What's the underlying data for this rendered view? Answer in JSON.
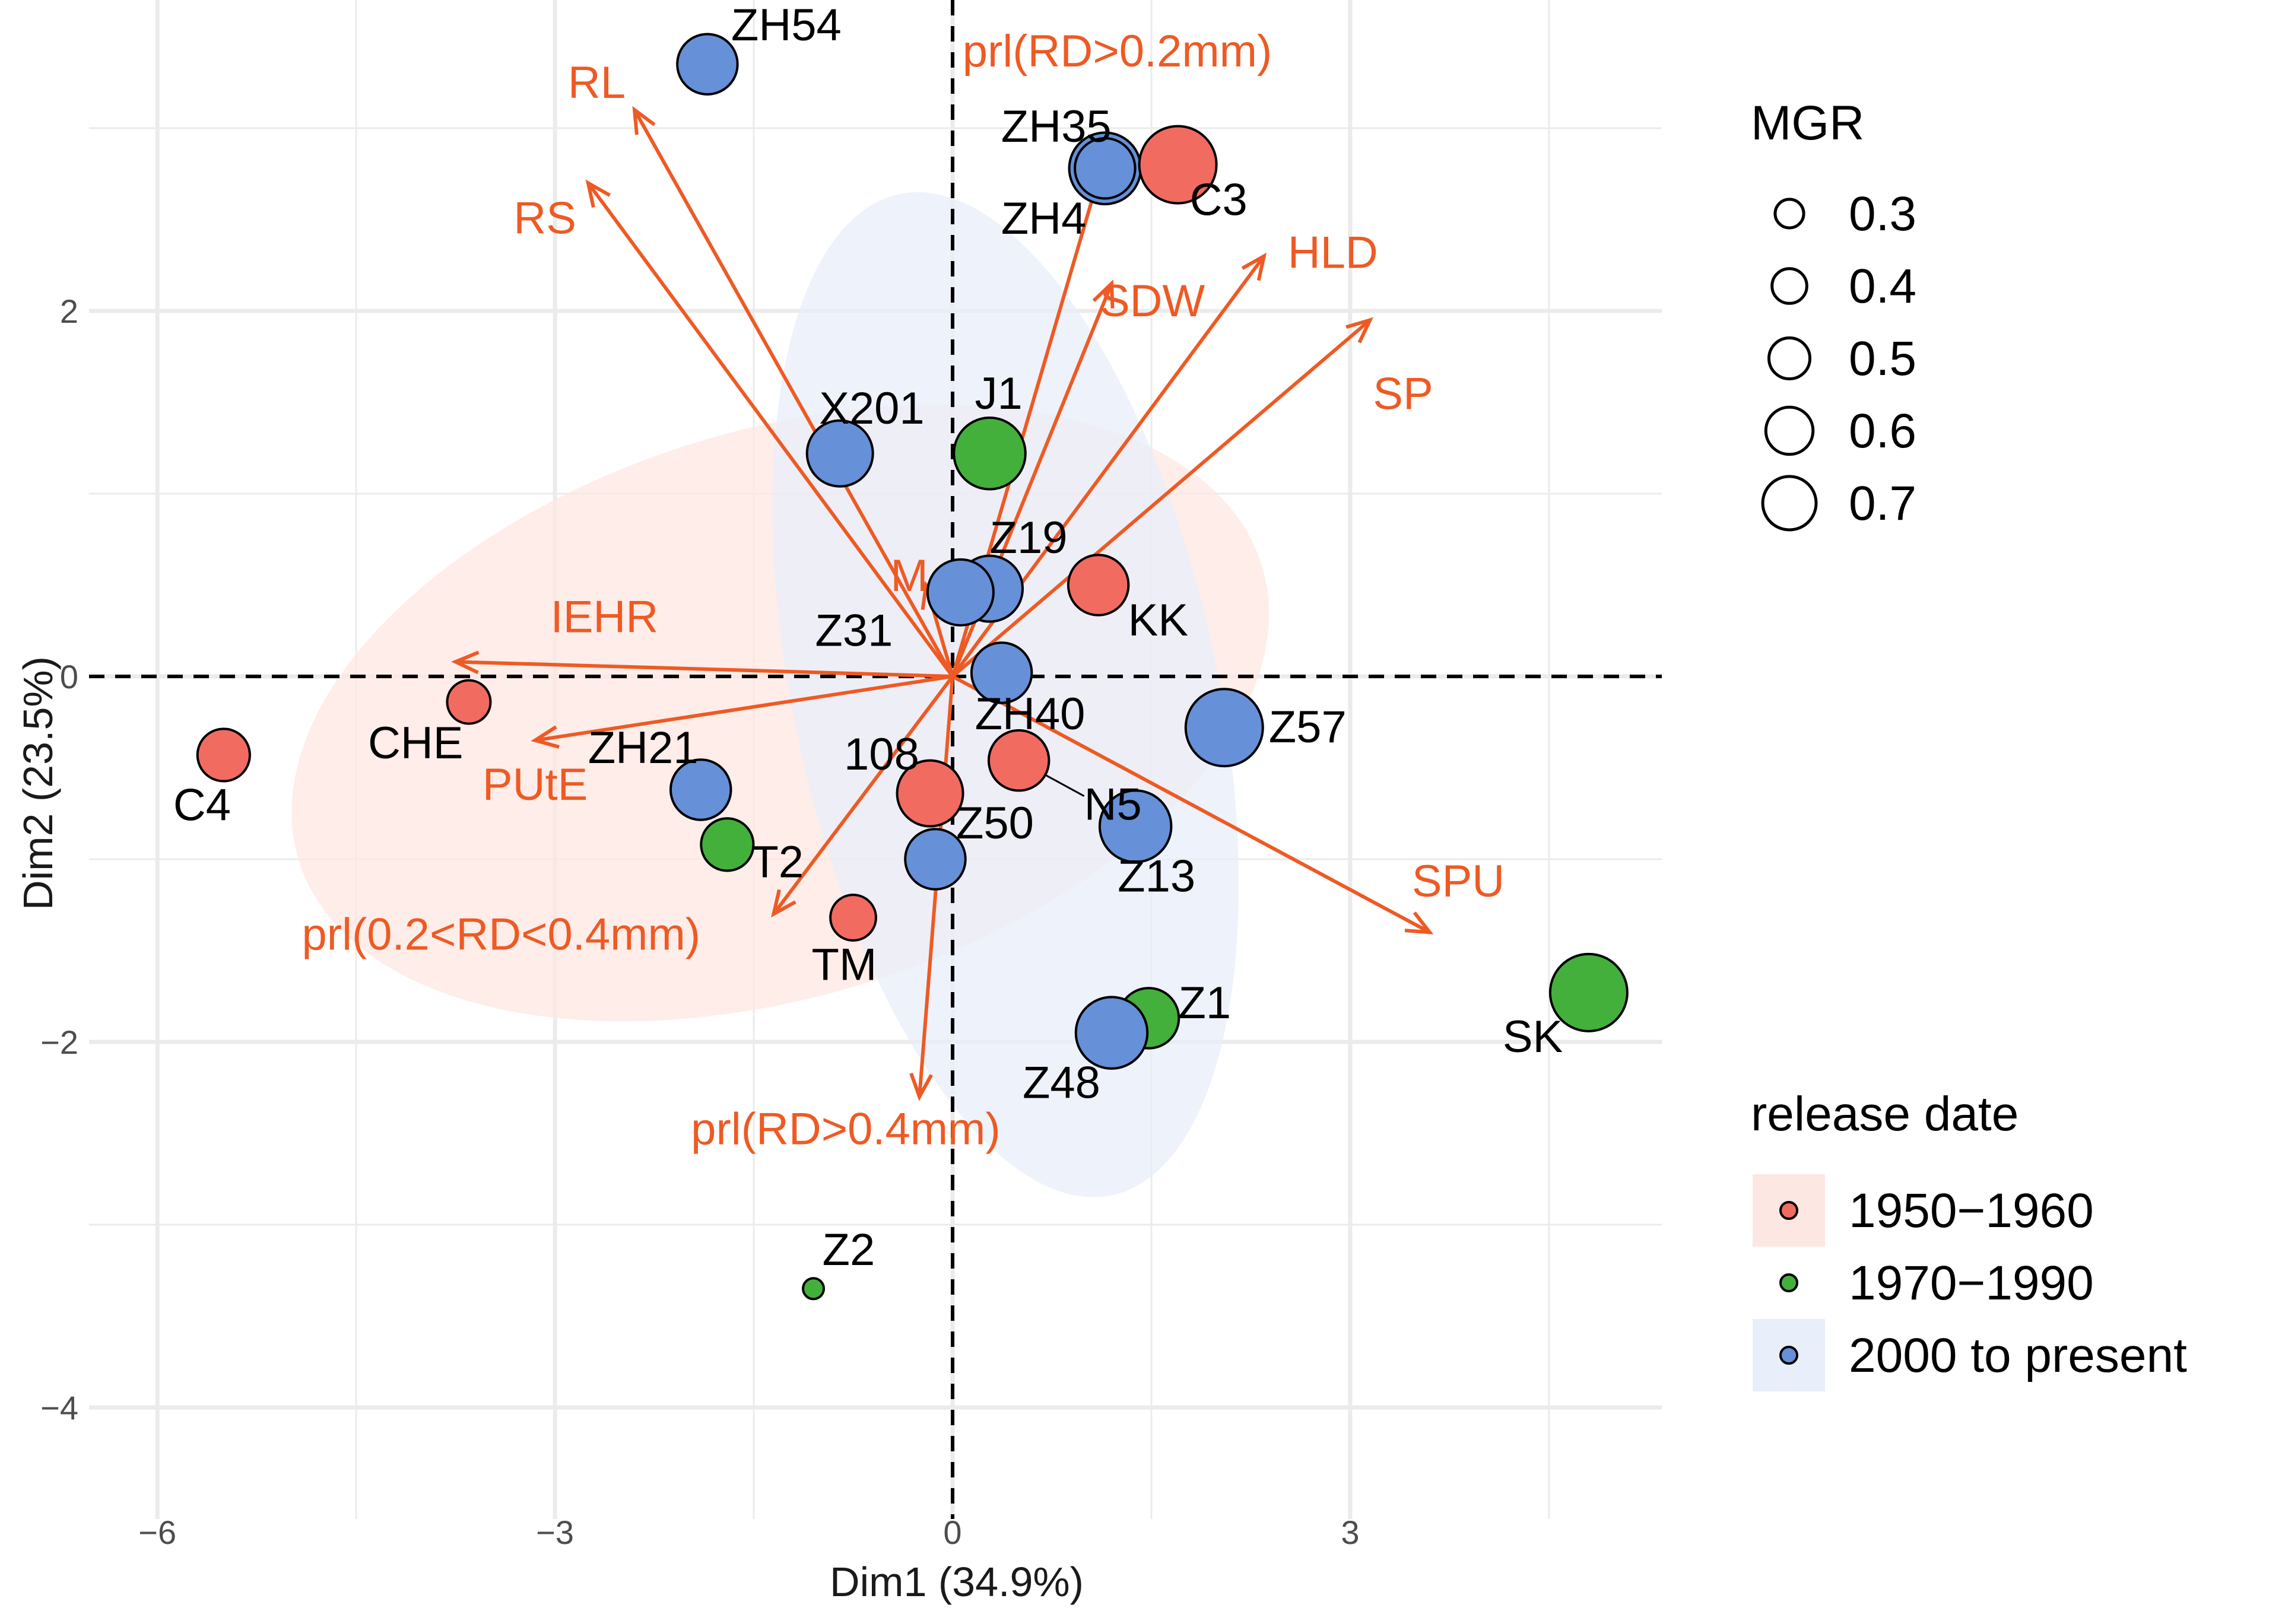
{
  "chart_data": {
    "type": "scatter",
    "subtype": "pca-biplot",
    "xlabel": "Dim1 (34.9%)",
    "ylabel": "Dim2 (23.5%)",
    "xlim": [
      -6,
      5.3
    ],
    "ylim": [
      -4.25,
      3.6
    ],
    "x_ticks": [
      -6,
      -3,
      0,
      3
    ],
    "x_tick_labels": [
      "−6",
      "−3",
      "0",
      "3"
    ],
    "y_ticks": [
      -4,
      -2,
      0,
      2
    ],
    "y_tick_labels": [
      "−4",
      "−2",
      "0",
      "2"
    ],
    "grid": true,
    "colors": {
      "group_1950": "#f26b61",
      "group_1970": "#44b03c",
      "group_2000": "#6690d8",
      "arrow": "#ee5a24",
      "ellipse_1950": "#fde7e2",
      "ellipse_2000": "#e8eefa",
      "grid": "#ebebeb"
    },
    "groups": [
      {
        "key": "g1950",
        "label": "1950−1960",
        "color": "#f26b61",
        "ellipse_color": "#fde7e2"
      },
      {
        "key": "g1970",
        "label": "1970−1990",
        "color": "#44b03c",
        "ellipse_color": "#ffffff"
      },
      {
        "key": "g2000",
        "label": "2000 to present",
        "color": "#6690d8",
        "ellipse_color": "#e8eefa"
      }
    ],
    "ellipses": [
      {
        "group": "g1950",
        "center": [
          -1.3,
          -0.2
        ],
        "semi_axes": [
          3.8,
          1.55
        ],
        "angle_deg": 17
      },
      {
        "group": "g2000",
        "center": [
          0.4,
          -0.1
        ],
        "semi_axes": [
          1.6,
          2.8
        ],
        "angle_deg": 12
      }
    ],
    "variables": [
      {
        "name": "RL",
        "x": -2.4,
        "y": 3.1
      },
      {
        "name": "RS",
        "x": -2.75,
        "y": 2.7
      },
      {
        "name": "prl(RD>0.2mm)",
        "x": 1.15,
        "y": 2.85
      },
      {
        "name": "SDW",
        "x": 1.2,
        "y": 2.15
      },
      {
        "name": "HLD",
        "x": 2.35,
        "y": 2.3
      },
      {
        "name": "SP",
        "x": 3.15,
        "y": 1.95
      },
      {
        "name": "M",
        "x": -0.2,
        "y": 0.5
      },
      {
        "name": "IEHR",
        "x": -3.75,
        "y": 0.08
      },
      {
        "name": "PUtE",
        "x": -3.15,
        "y": -0.35
      },
      {
        "name": "SPU",
        "x": 3.6,
        "y": -1.4
      },
      {
        "name": "prl(0.2<RD<0.4mm)",
        "x": -1.35,
        "y": -1.3
      },
      {
        "name": "prl(RD>0.4mm)",
        "x": -0.25,
        "y": -2.3
      }
    ],
    "individuals": [
      {
        "name": "ZH54",
        "x": -1.85,
        "y": 3.35,
        "group": "g2000",
        "mgr": 0.45
      },
      {
        "name": "ZH35",
        "x": 1.15,
        "y": 2.78,
        "group": "g2000",
        "mgr": 0.55
      },
      {
        "name": "C3",
        "x": 1.7,
        "y": 2.8,
        "group": "g1950",
        "mgr": 0.6
      },
      {
        "name": "ZH4",
        "x": 1.15,
        "y": 2.78,
        "group": "g2000",
        "mgr": 0.45
      },
      {
        "name": "X201",
        "x": -0.85,
        "y": 1.22,
        "group": "g2000",
        "mgr": 0.5
      },
      {
        "name": "J1",
        "x": 0.28,
        "y": 1.22,
        "group": "g1970",
        "mgr": 0.55
      },
      {
        "name": "Z19",
        "x": 0.28,
        "y": 0.48,
        "group": "g2000",
        "mgr": 0.5
      },
      {
        "name": "Z31",
        "x": 0.06,
        "y": 0.46,
        "group": "g2000",
        "mgr": 0.5
      },
      {
        "name": "KK",
        "x": 1.1,
        "y": 0.5,
        "group": "g1950",
        "mgr": 0.45
      },
      {
        "name": "ZH40",
        "x": 0.37,
        "y": 0.02,
        "group": "g2000",
        "mgr": 0.45
      },
      {
        "name": "Z57",
        "x": 2.05,
        "y": -0.28,
        "group": "g2000",
        "mgr": 0.6
      },
      {
        "name": "CHE",
        "x": -3.65,
        "y": -0.14,
        "group": "g1950",
        "mgr": 0.3
      },
      {
        "name": "C4",
        "x": -5.5,
        "y": -0.43,
        "group": "g1950",
        "mgr": 0.38
      },
      {
        "name": "ZH21",
        "x": -1.9,
        "y": -0.62,
        "group": "g2000",
        "mgr": 0.45
      },
      {
        "name": "108",
        "x": -0.17,
        "y": -0.64,
        "group": "g1950",
        "mgr": 0.5
      },
      {
        "name": "N5",
        "x": 0.5,
        "y": -0.46,
        "group": "g1950",
        "mgr": 0.45
      },
      {
        "name": "Z13",
        "x": 1.38,
        "y": -0.82,
        "group": "g2000",
        "mgr": 0.55
      },
      {
        "name": "T2",
        "x": -1.7,
        "y": -0.92,
        "group": "g1970",
        "mgr": 0.38
      },
      {
        "name": "Z50",
        "x": -0.13,
        "y": -1.0,
        "group": "g2000",
        "mgr": 0.45
      },
      {
        "name": "TM",
        "x": -0.75,
        "y": -1.32,
        "group": "g1950",
        "mgr": 0.32
      },
      {
        "name": "SK",
        "x": 4.8,
        "y": -1.73,
        "group": "g1970",
        "mgr": 0.6
      },
      {
        "name": "Z1",
        "x": 1.48,
        "y": -1.87,
        "group": "g1970",
        "mgr": 0.45
      },
      {
        "name": "Z48",
        "x": 1.2,
        "y": -1.95,
        "group": "g2000",
        "mgr": 0.55
      },
      {
        "name": "Z2",
        "x": -1.05,
        "y": -3.35,
        "group": "g1970",
        "mgr": 0.1
      }
    ],
    "size_legend": {
      "title": "MGR",
      "values": [
        0.3,
        0.4,
        0.5,
        0.6,
        0.7
      ],
      "labels": [
        "0.3",
        "0.4",
        "0.5",
        "0.6",
        "0.7"
      ]
    },
    "color_legend": {
      "title": "release date"
    }
  }
}
